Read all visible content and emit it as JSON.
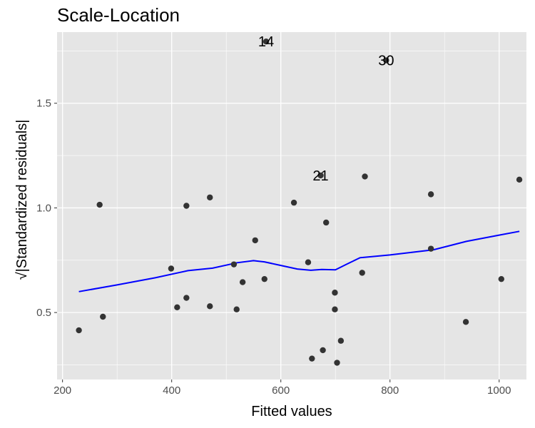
{
  "chart_data": {
    "type": "scatter",
    "title": "Scale-Location",
    "xlabel": "Fitted values",
    "ylabel": "√|Standardized residuals|",
    "xlim": [
      190,
      1050
    ],
    "ylim": [
      0.18,
      1.84
    ],
    "x_ticks": [
      200,
      400,
      600,
      800,
      1000
    ],
    "y_ticks": [
      0.5,
      1.0,
      1.5
    ],
    "y_tick_labels": [
      "0.5",
      "1.0",
      "1.5"
    ],
    "grid": true,
    "colors": {
      "panel": "#e5e5e5",
      "grid": "#ffffff",
      "points": "#333333",
      "smooth": "#0000ff"
    },
    "points": [
      {
        "x": 230,
        "y": 0.415
      },
      {
        "x": 268,
        "y": 1.015
      },
      {
        "x": 274,
        "y": 0.48
      },
      {
        "x": 399,
        "y": 0.71
      },
      {
        "x": 410,
        "y": 0.525
      },
      {
        "x": 427,
        "y": 0.57
      },
      {
        "x": 427,
        "y": 1.01
      },
      {
        "x": 470,
        "y": 0.53
      },
      {
        "x": 470,
        "y": 1.05
      },
      {
        "x": 514,
        "y": 0.73
      },
      {
        "x": 519,
        "y": 0.515
      },
      {
        "x": 530,
        "y": 0.645
      },
      {
        "x": 553,
        "y": 0.845
      },
      {
        "x": 570,
        "y": 0.66
      },
      {
        "x": 573,
        "y": 1.795
      },
      {
        "x": 624,
        "y": 1.025
      },
      {
        "x": 650,
        "y": 0.74
      },
      {
        "x": 657,
        "y": 0.28
      },
      {
        "x": 673,
        "y": 1.155
      },
      {
        "x": 677,
        "y": 0.32
      },
      {
        "x": 683,
        "y": 0.93
      },
      {
        "x": 699,
        "y": 0.595
      },
      {
        "x": 699,
        "y": 0.515
      },
      {
        "x": 703,
        "y": 0.26
      },
      {
        "x": 710,
        "y": 0.365
      },
      {
        "x": 749,
        "y": 0.69
      },
      {
        "x": 754,
        "y": 1.15
      },
      {
        "x": 793,
        "y": 1.705
      },
      {
        "x": 875,
        "y": 1.065
      },
      {
        "x": 875,
        "y": 0.805
      },
      {
        "x": 939,
        "y": 0.455
      },
      {
        "x": 1004,
        "y": 0.66
      },
      {
        "x": 1037,
        "y": 1.135
      }
    ],
    "smooth_line": [
      {
        "x": 230,
        "y": 0.6
      },
      {
        "x": 300,
        "y": 0.632
      },
      {
        "x": 370,
        "y": 0.666
      },
      {
        "x": 430,
        "y": 0.7
      },
      {
        "x": 475,
        "y": 0.712
      },
      {
        "x": 520,
        "y": 0.738
      },
      {
        "x": 550,
        "y": 0.748
      },
      {
        "x": 570,
        "y": 0.742
      },
      {
        "x": 600,
        "y": 0.725
      },
      {
        "x": 630,
        "y": 0.708
      },
      {
        "x": 655,
        "y": 0.702
      },
      {
        "x": 675,
        "y": 0.706
      },
      {
        "x": 700,
        "y": 0.704
      },
      {
        "x": 720,
        "y": 0.73
      },
      {
        "x": 745,
        "y": 0.762
      },
      {
        "x": 800,
        "y": 0.775
      },
      {
        "x": 880,
        "y": 0.8
      },
      {
        "x": 940,
        "y": 0.84
      },
      {
        "x": 1000,
        "y": 0.87
      },
      {
        "x": 1037,
        "y": 0.888
      }
    ],
    "labels": [
      {
        "text": "14",
        "x": 573,
        "y": 1.795
      },
      {
        "text": "30",
        "x": 793,
        "y": 1.705
      },
      {
        "text": "21",
        "x": 673,
        "y": 1.155
      }
    ]
  }
}
